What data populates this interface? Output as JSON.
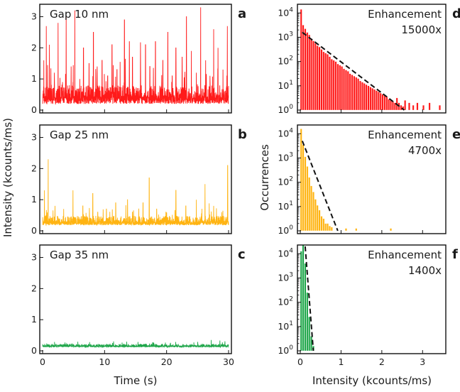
{
  "colors": {
    "red": "#ff1a1a",
    "orange": "#ffb412",
    "green": "#1fa64a",
    "fit": "#111111"
  },
  "axes": {
    "left_ylabel": "Intensity (kcounts/ms)",
    "left_xlabel": "Time (s)",
    "right_ylabel": "Occurrences",
    "right_xlabel": "Intensity (kcounts/ms)",
    "left_xticks": [
      "0",
      "10",
      "20",
      "30"
    ],
    "left_yticks": [
      "0",
      "1",
      "2",
      "3"
    ],
    "right_xticks": [
      "0",
      "1",
      "2",
      "3"
    ],
    "right_ytick_base": "10",
    "right_ytick_exps": [
      "0",
      "1",
      "2",
      "3",
      "4"
    ]
  },
  "chart_data": [
    {
      "panel": "a",
      "type": "line",
      "annotation": "Gap 10 nm",
      "series_color": "red",
      "xlim": [
        0,
        30
      ],
      "ylim": [
        0,
        3.4
      ],
      "baseline": 0.2,
      "noise_max": 0.6,
      "n_points": 1500,
      "bursts": [
        [
          0.2,
          1.6
        ],
        [
          0.6,
          2.7
        ],
        [
          1.1,
          2.1
        ],
        [
          1.9,
          1.2
        ],
        [
          2.5,
          2.8
        ],
        [
          3.2,
          0.9
        ],
        [
          3.8,
          2.2
        ],
        [
          4.6,
          1.4
        ],
        [
          5.2,
          3.2
        ],
        [
          6.0,
          1.0
        ],
        [
          6.6,
          2.0
        ],
        [
          7.5,
          1.5
        ],
        [
          8.2,
          2.5
        ],
        [
          8.8,
          1.2
        ],
        [
          9.6,
          1.6
        ],
        [
          10.5,
          1.1
        ],
        [
          11.2,
          2.1
        ],
        [
          12.0,
          1.3
        ],
        [
          13.2,
          2.9
        ],
        [
          14.0,
          2.2
        ],
        [
          14.5,
          1.7
        ],
        [
          15.8,
          1.3
        ],
        [
          16.6,
          2.1
        ],
        [
          17.3,
          1.4
        ],
        [
          18.2,
          2.2
        ],
        [
          19.4,
          1.6
        ],
        [
          20.2,
          2.5
        ],
        [
          20.9,
          1.1
        ],
        [
          21.5,
          2.0
        ],
        [
          22.5,
          1.7
        ],
        [
          23.2,
          3.0
        ],
        [
          24.0,
          1.9
        ],
        [
          24.8,
          1.2
        ],
        [
          25.5,
          3.3
        ],
        [
          26.3,
          1.6
        ],
        [
          27.0,
          1.1
        ],
        [
          27.6,
          2.6
        ],
        [
          28.3,
          2.0
        ],
        [
          29.1,
          1.3
        ],
        [
          29.8,
          2.7
        ]
      ]
    },
    {
      "panel": "b",
      "type": "line",
      "annotation": "Gap 25 nm",
      "series_color": "orange",
      "xlim": [
        0,
        30
      ],
      "ylim": [
        0,
        3.4
      ],
      "baseline": 0.18,
      "noise_max": 0.3,
      "n_points": 1500,
      "bursts": [
        [
          0.3,
          1.3
        ],
        [
          0.9,
          2.3
        ],
        [
          2.0,
          0.8
        ],
        [
          3.4,
          0.7
        ],
        [
          4.9,
          1.3
        ],
        [
          6.5,
          0.8
        ],
        [
          8.1,
          1.2
        ],
        [
          8.9,
          0.6
        ],
        [
          10.3,
          0.7
        ],
        [
          11.8,
          0.9
        ],
        [
          13.7,
          1.0
        ],
        [
          14.5,
          0.6
        ],
        [
          16.2,
          0.9
        ],
        [
          17.2,
          1.7
        ],
        [
          18.4,
          0.7
        ],
        [
          19.9,
          0.6
        ],
        [
          21.5,
          1.3
        ],
        [
          23.1,
          0.8
        ],
        [
          24.8,
          1.0
        ],
        [
          26.2,
          1.5
        ],
        [
          27.6,
          0.8
        ],
        [
          28.9,
          0.6
        ],
        [
          29.85,
          2.1
        ]
      ]
    },
    {
      "panel": "c",
      "type": "line",
      "annotation": "Gap 35 nm",
      "series_color": "green",
      "xlim": [
        0,
        30
      ],
      "ylim": [
        0,
        3.4
      ],
      "baseline": 0.12,
      "noise_max": 0.1,
      "n_points": 1500,
      "bursts": [
        [
          3.6,
          0.26
        ],
        [
          11.3,
          0.24
        ],
        [
          17.8,
          0.25
        ],
        [
          24.4,
          0.27
        ],
        [
          28.6,
          0.33
        ],
        [
          29.4,
          0.28
        ]
      ]
    },
    {
      "panel": "d",
      "type": "bar",
      "annotation": [
        "Enhancement",
        "15000x"
      ],
      "series_color": "red",
      "xlim": [
        0,
        3.5
      ],
      "ylim_log10": [
        0,
        4.3
      ],
      "bin_width": 0.05,
      "log_scale": true,
      "counts_log10": [
        4.15,
        3.5,
        3.35,
        3.2,
        3.1,
        2.95,
        2.85,
        2.75,
        2.65,
        2.6,
        2.5,
        2.4,
        2.35,
        2.3,
        2.2,
        2.1,
        2.05,
        2.0,
        1.9,
        1.85,
        1.8,
        1.7,
        1.65,
        1.6,
        1.5,
        1.45,
        1.4,
        1.35,
        1.3,
        1.2,
        1.15,
        1.1,
        1.05,
        1.0,
        0.95,
        0.9,
        0.85,
        0.8,
        0.75,
        0.7,
        0.65,
        0.6,
        0.55,
        0.45,
        0.4,
        0.35,
        0.3,
        0.5,
        0.3,
        0.2,
        0.15,
        0.4,
        0.0,
        0.3,
        0.0,
        0.2,
        0.0,
        0.3,
        0.0,
        0.0,
        0.2,
        0.0,
        0.0,
        0.3,
        0.0,
        0.0,
        0.0,
        0.0,
        0.2,
        0.0
      ],
      "fit_log10": [
        [
          0.05,
          3.2
        ],
        [
          2.55,
          0.0
        ]
      ]
    },
    {
      "panel": "e",
      "type": "bar",
      "annotation": [
        "Enhancement",
        "4700x"
      ],
      "series_color": "orange",
      "xlim": [
        0,
        3.5
      ],
      "ylim_log10": [
        0,
        4.3
      ],
      "bin_width": 0.05,
      "log_scale": true,
      "counts_log10": [
        4.2,
        3.55,
        3.05,
        2.65,
        2.2,
        1.85,
        1.6,
        1.3,
        1.05,
        0.85,
        0.6,
        0.5,
        0.3,
        0.3,
        0.2,
        0.15,
        0.0,
        0.0,
        0.0,
        0.0,
        0.0,
        0.0,
        0.1,
        0.0,
        0.0,
        0.0,
        0.0,
        0.1,
        0.0,
        0.0,
        0.0,
        0.0,
        0.0,
        0.0,
        0.0,
        0.0,
        0.0,
        0.0,
        0.0,
        0.0,
        0.0,
        0.0,
        0.0,
        0.0,
        0.1,
        0.0,
        0.0,
        0.0
      ],
      "fit_log10": [
        [
          0.05,
          3.7
        ],
        [
          0.92,
          0.0
        ]
      ]
    },
    {
      "panel": "f",
      "type": "bar",
      "annotation": [
        "Enhancement",
        "1400x"
      ],
      "series_color": "green",
      "xlim": [
        0,
        3.5
      ],
      "ylim_log10": [
        0,
        4.3
      ],
      "bin_width": 0.05,
      "log_scale": true,
      "counts_log10": [
        4.1,
        4.35,
        3.6,
        2.4,
        1.4,
        0.6,
        0.2
      ],
      "fit_log10": [
        [
          0.12,
          4.3
        ],
        [
          0.32,
          0.0
        ]
      ]
    }
  ]
}
